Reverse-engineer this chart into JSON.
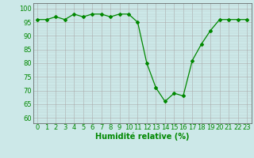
{
  "x": [
    0,
    1,
    2,
    3,
    4,
    5,
    6,
    7,
    8,
    9,
    10,
    11,
    12,
    13,
    14,
    15,
    16,
    17,
    18,
    19,
    20,
    21,
    22,
    23
  ],
  "y": [
    96,
    96,
    97,
    96,
    98,
    97,
    98,
    98,
    97,
    98,
    98,
    95,
    80,
    71,
    66,
    69,
    68,
    81,
    87,
    92,
    96,
    96,
    96,
    96
  ],
  "line_color": "#008800",
  "marker": "D",
  "marker_size": 2,
  "bg_color": "#cce8e8",
  "xlabel": "Humidité relative (%)",
  "xlabel_color": "#008800",
  "xlabel_fontsize": 7,
  "ylabel_ticks": [
    60,
    65,
    70,
    75,
    80,
    85,
    90,
    95,
    100
  ],
  "ylim": [
    58,
    102
  ],
  "xlim": [
    -0.5,
    23.5
  ],
  "tick_fontsize": 6,
  "grid_major_color": "#aaaaaa",
  "grid_minor_color": "#bbcccc",
  "spine_color": "#555555"
}
